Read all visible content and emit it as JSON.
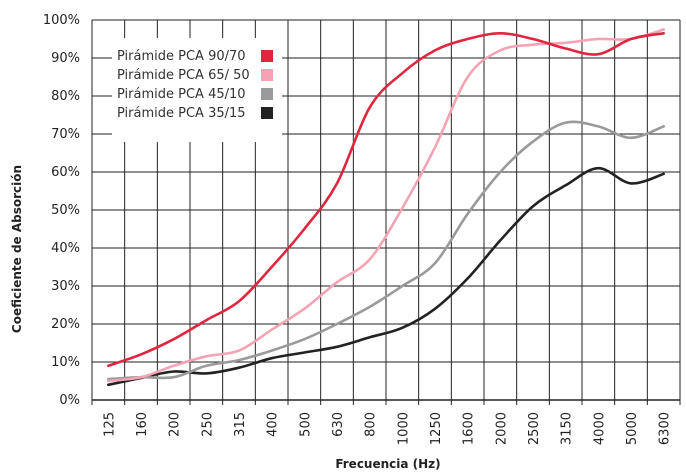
{
  "chart_data": {
    "type": "line",
    "title": "",
    "xlabel": "Frecuencia (Hz)",
    "ylabel": "Coeficiente de Absorción",
    "categories": [
      "125",
      "160",
      "200",
      "250",
      "315",
      "400",
      "500",
      "630",
      "800",
      "1000",
      "1250",
      "1600",
      "2000",
      "2500",
      "3150",
      "4000",
      "5000",
      "6300"
    ],
    "y_ticks": [
      "0%",
      "10%",
      "20%",
      "30%",
      "40%",
      "50%",
      "60%",
      "70%",
      "80%",
      "90%",
      "100%"
    ],
    "ylim": [
      0,
      100
    ],
    "grid": true,
    "legend_position": "top-left",
    "series": [
      {
        "name": "Pirámide PCA 90/70",
        "color": "#e0263f",
        "values": [
          9,
          12,
          16,
          21,
          26,
          35,
          45,
          57,
          77,
          86,
          92,
          95,
          96.5,
          95,
          92.5,
          91,
          95,
          96.5
        ]
      },
      {
        "name": "Pirámide PCA 65/ 50",
        "color": "#f4a3b4",
        "values": [
          5,
          6,
          9,
          11.5,
          13,
          18.5,
          24,
          31,
          37,
          50.5,
          66.5,
          85,
          92,
          93.5,
          94,
          95,
          95,
          97.5
        ]
      },
      {
        "name": "Pirámide PCA 45/10",
        "color": "#9a9a9a",
        "values": [
          5.5,
          6,
          6,
          9,
          10.5,
          13,
          16,
          20,
          24.5,
          30,
          36,
          49,
          60,
          68,
          73,
          72,
          69,
          72
        ]
      },
      {
        "name": "Pirámide PCA 35/15",
        "color": "#222222",
        "values": [
          4,
          5.8,
          7.5,
          7,
          8.5,
          11,
          12.5,
          14,
          16.5,
          19,
          24,
          32,
          42,
          51,
          56.5,
          61,
          57,
          59.5
        ]
      }
    ]
  }
}
